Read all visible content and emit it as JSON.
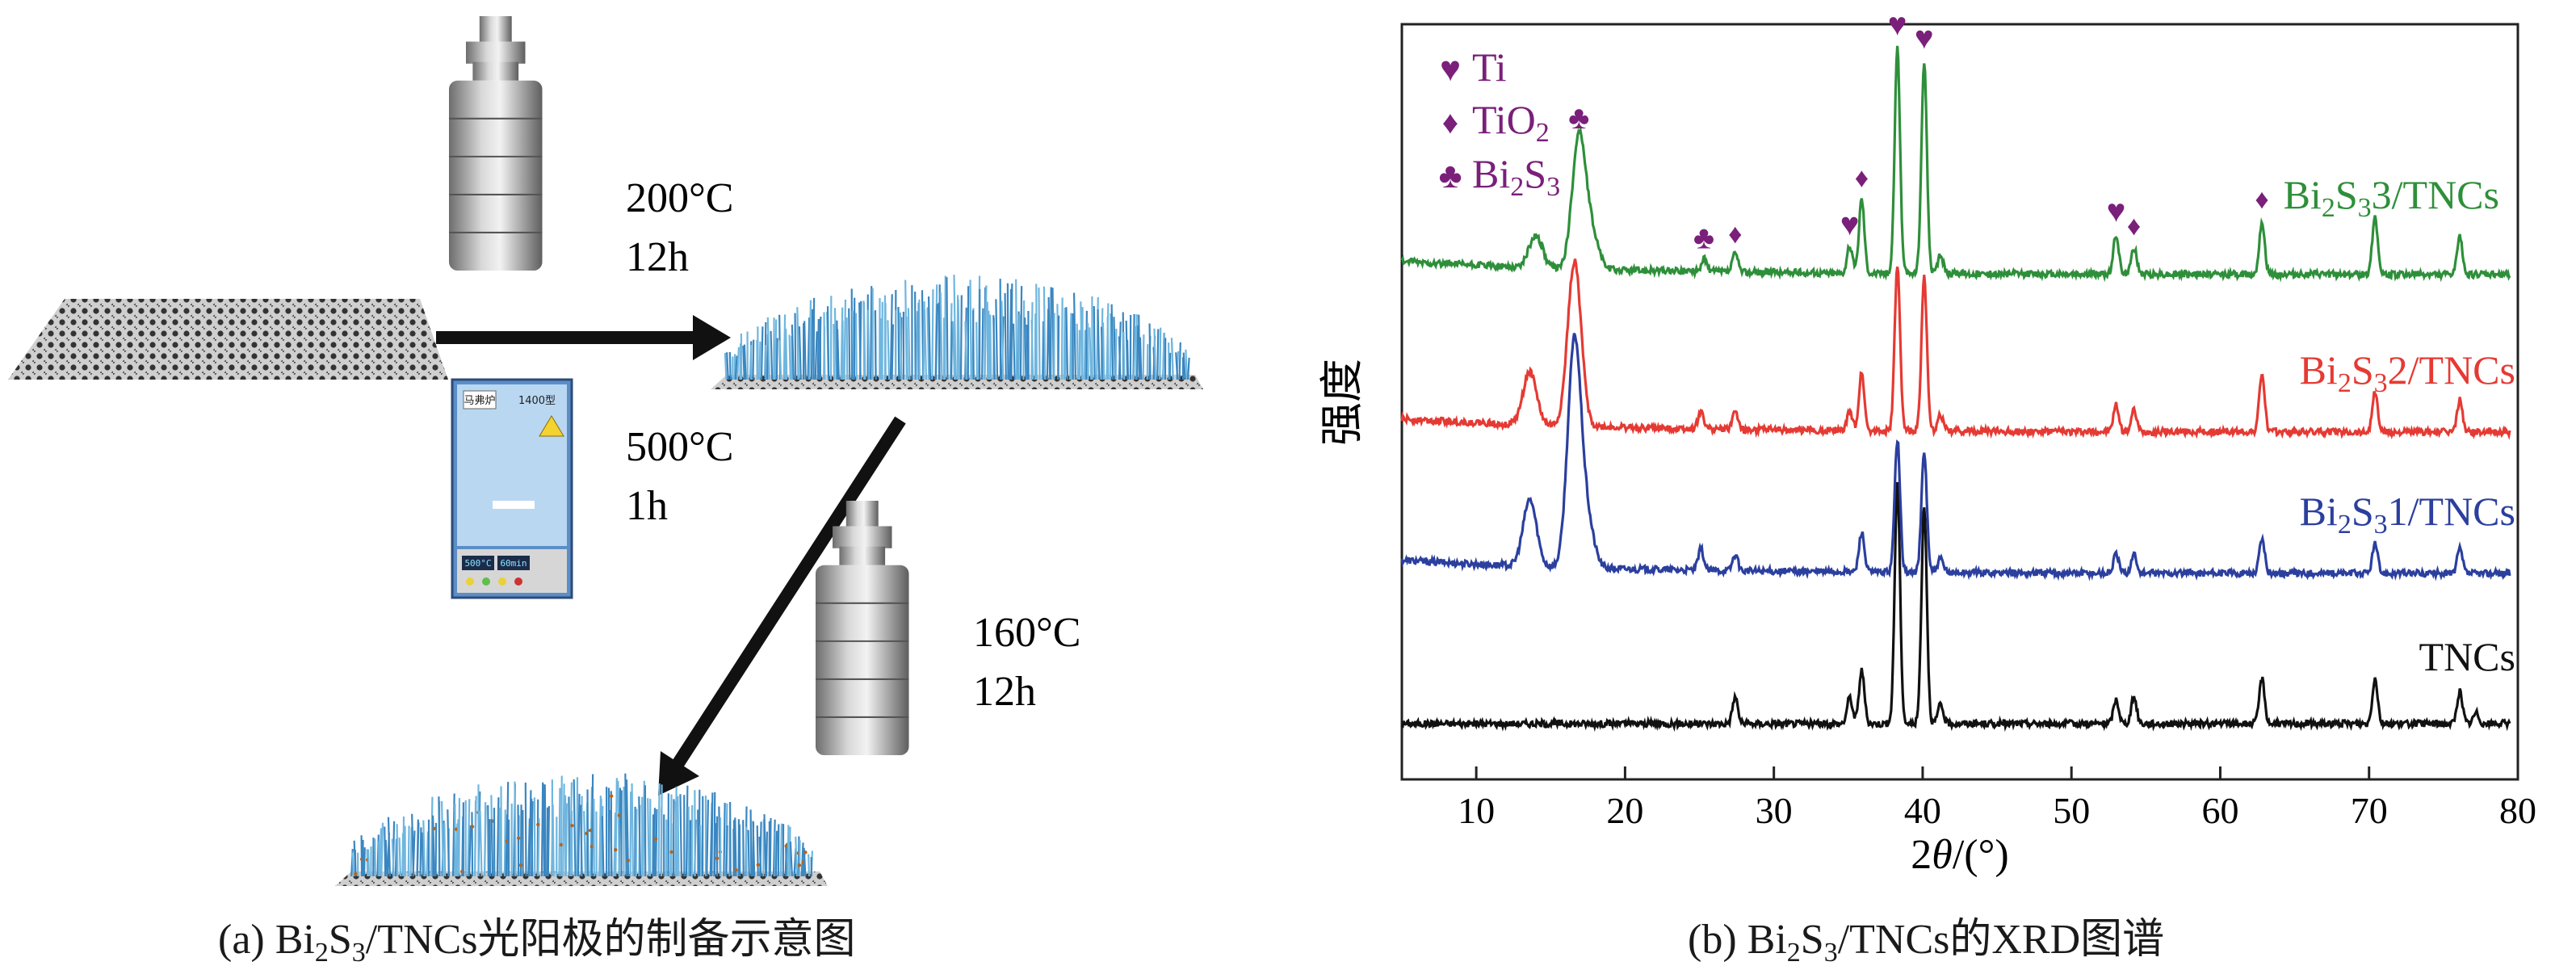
{
  "panel_a": {
    "step1": {
      "temp": "200°C",
      "time": "12h"
    },
    "step2": {
      "temp": "500°C",
      "time": "1h"
    },
    "step3": {
      "temp": "160°C",
      "time": "12h"
    },
    "furnace": {
      "brand": "马弗炉",
      "code": "1400型",
      "led1": "500°C",
      "led2": "60min"
    },
    "caption": {
      "prefix": "(a) Bi",
      "s1": "2",
      "mid": "S",
      "s2": "3",
      "suffix": "/TNCs光阳极的制备示意图"
    }
  },
  "panel_b": {
    "caption": {
      "prefix": "(b) Bi",
      "s1": "2",
      "mid": "S",
      "s2": "3",
      "suffix": "/TNCs的XRD图谱"
    }
  },
  "chart_data": {
    "type": "line",
    "xlabel": "2θ/(°)",
    "ylabel": "强度",
    "xlim": [
      5,
      80
    ],
    "xticks": [
      10,
      20,
      30,
      40,
      50,
      60,
      70,
      80
    ],
    "y_ticks_shown": false,
    "legend": {
      "placement": "top-left",
      "entries": [
        {
          "symbol": "♥",
          "label": "Ti"
        },
        {
          "symbol": "♦",
          "label": "TiO2"
        },
        {
          "symbol": "♣",
          "label": "Bi2S3"
        }
      ]
    },
    "series": [
      {
        "name": "TNCs",
        "color": "#111111",
        "offset": 0,
        "peaks": [
          [
            27.4,
            0.1
          ],
          [
            35.1,
            0.1
          ],
          [
            35.9,
            0.2
          ],
          [
            38.3,
            0.9
          ],
          [
            40.1,
            0.82
          ],
          [
            41.2,
            0.07
          ],
          [
            53.0,
            0.09
          ],
          [
            54.2,
            0.1
          ],
          [
            62.8,
            0.17
          ],
          [
            70.4,
            0.17
          ],
          [
            76.1,
            0.12
          ],
          [
            77.2,
            0.04
          ]
        ]
      },
      {
        "name": "Bi2S3 1/TNCs",
        "color": "#2b3f9e",
        "offset": 1,
        "peaks": [
          [
            13.6,
            0.25
          ],
          [
            16.6,
            0.85
          ],
          [
            17.5,
            0.15
          ],
          [
            25.1,
            0.08
          ],
          [
            27.4,
            0.06
          ],
          [
            35.9,
            0.15
          ],
          [
            38.3,
            0.5
          ],
          [
            40.1,
            0.45
          ],
          [
            41.2,
            0.05
          ],
          [
            53.0,
            0.07
          ],
          [
            54.2,
            0.07
          ],
          [
            62.8,
            0.13
          ],
          [
            70.4,
            0.11
          ],
          [
            76.1,
            0.09
          ]
        ]
      },
      {
        "name": "Bi2S3 2/TNCs",
        "color": "#e53a33",
        "offset": 2,
        "peaks": [
          [
            13.6,
            0.2
          ],
          [
            16.6,
            0.62
          ],
          [
            25.1,
            0.07
          ],
          [
            27.4,
            0.07
          ],
          [
            35.1,
            0.07
          ],
          [
            35.9,
            0.22
          ],
          [
            38.3,
            0.62
          ],
          [
            40.1,
            0.58
          ],
          [
            41.2,
            0.06
          ],
          [
            53.0,
            0.1
          ],
          [
            54.2,
            0.08
          ],
          [
            62.8,
            0.22
          ],
          [
            70.4,
            0.15
          ],
          [
            76.1,
            0.12
          ]
        ]
      },
      {
        "name": "Bi2S3 3/TNCs",
        "color": "#2e8f3a",
        "offset": 3,
        "peaks": [
          [
            14.0,
            0.12
          ],
          [
            16.9,
            0.5
          ],
          [
            17.8,
            0.12
          ],
          [
            25.3,
            0.05
          ],
          [
            27.4,
            0.07
          ],
          [
            35.1,
            0.1
          ],
          [
            35.9,
            0.28
          ],
          [
            38.3,
            0.85
          ],
          [
            40.1,
            0.8
          ],
          [
            41.2,
            0.07
          ],
          [
            53.0,
            0.15
          ],
          [
            54.2,
            0.1
          ],
          [
            62.8,
            0.2
          ],
          [
            70.4,
            0.22
          ],
          [
            76.1,
            0.14
          ]
        ]
      }
    ],
    "annotations": [
      {
        "symbol": "♣",
        "x": 16.9
      },
      {
        "symbol": "♣",
        "x": 25.3
      },
      {
        "symbol": "♦",
        "x": 27.4
      },
      {
        "symbol": "♥",
        "x": 35.1
      },
      {
        "symbol": "♦",
        "x": 35.9
      },
      {
        "symbol": "♥",
        "x": 38.3
      },
      {
        "symbol": "♥",
        "x": 40.1
      },
      {
        "symbol": "♥",
        "x": 53.0
      },
      {
        "symbol": "♦",
        "x": 54.2
      },
      {
        "symbol": "♦",
        "x": 62.8
      }
    ],
    "colors": {
      "annotation": "#7a1f7a"
    }
  }
}
